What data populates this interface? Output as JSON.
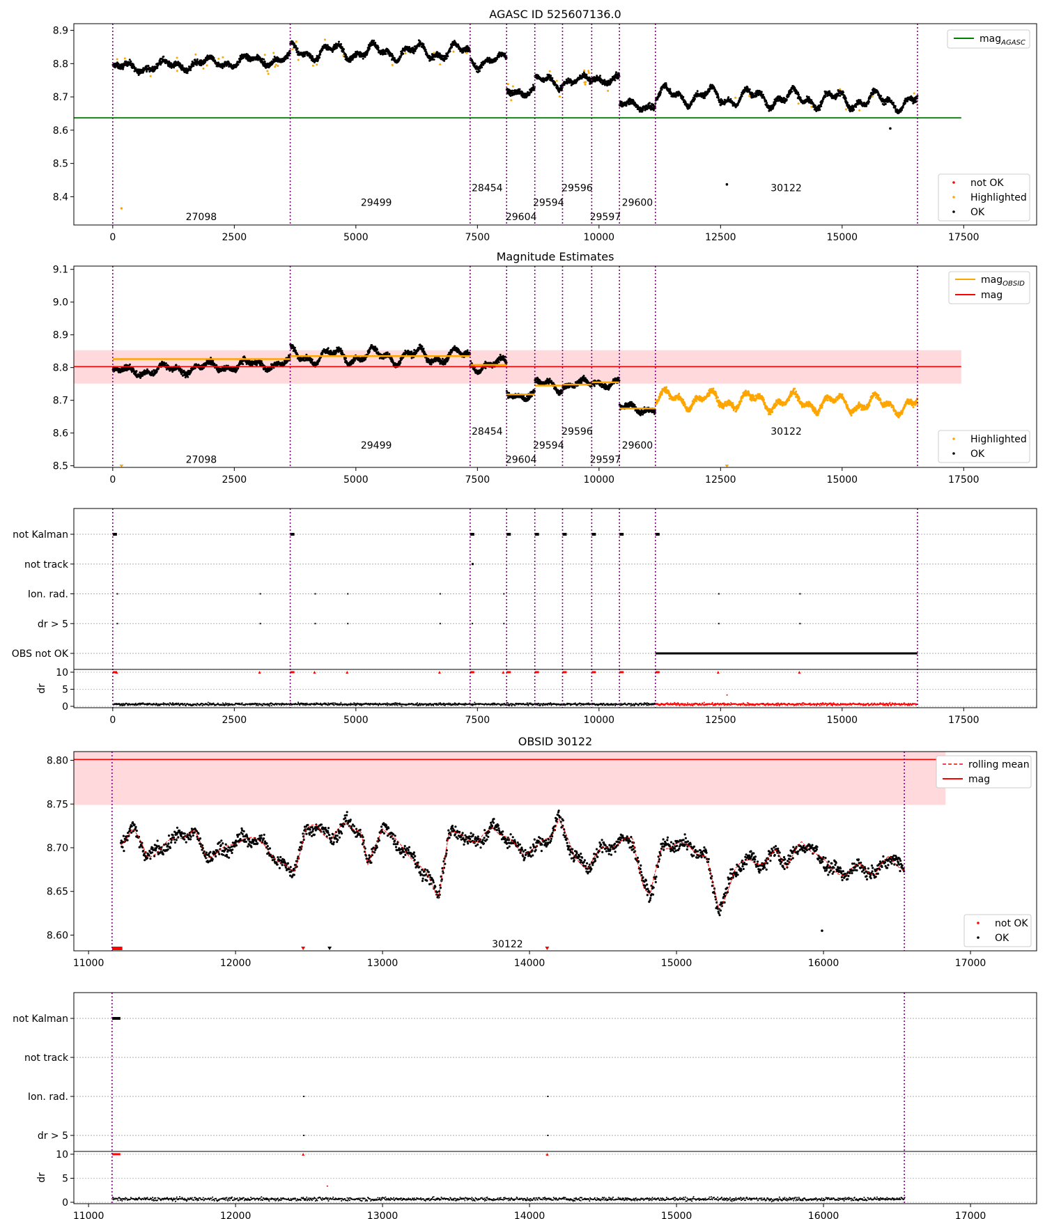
{
  "chart_data": [
    {
      "id": "agasc",
      "type": "scatter",
      "title": "AGASC ID 525607136.0",
      "xlim": [
        -800,
        19000
      ],
      "ylim": [
        8.315,
        8.92
      ],
      "xticks": [
        0,
        2500,
        5000,
        7500,
        10000,
        12500,
        15000,
        17500
      ],
      "xtick_labels": [
        "0",
        "2500",
        "5000",
        "7500",
        "10000",
        "12500",
        "15000",
        "17500"
      ],
      "yticks": [
        8.4,
        8.5,
        8.6,
        8.7,
        8.8,
        8.9
      ],
      "ytick_labels": [
        "8.4",
        "8.5",
        "8.6",
        "8.7",
        "8.8",
        "8.9"
      ],
      "mag_agasc": 8.637,
      "legend_top": [
        "mag_AGASC"
      ],
      "legend_bottom": [
        "not OK",
        "Highlighted",
        "OK"
      ],
      "obs_boundaries": [
        0,
        3650,
        7350,
        8100,
        8680,
        9250,
        9850,
        10420,
        11160,
        16550
      ],
      "obsid_labels": [
        {
          "text": "27098",
          "x": 1820,
          "y": 8.34
        },
        {
          "text": "29499",
          "x": 5420,
          "y": 8.383
        },
        {
          "text": "28454",
          "x": 7700,
          "y": 8.427
        },
        {
          "text": "29604",
          "x": 8400,
          "y": 8.34
        },
        {
          "text": "29594",
          "x": 8960,
          "y": 8.383
        },
        {
          "text": "29596",
          "x": 9550,
          "y": 8.427
        },
        {
          "text": "29597",
          "x": 10130,
          "y": 8.34
        },
        {
          "text": "29600",
          "x": 10790,
          "y": 8.383
        },
        {
          "text": "30122",
          "x": 13850,
          "y": 8.427
        }
      ],
      "segments": [
        {
          "x0": 0,
          "x1": 3650,
          "level": 8.8,
          "rise": 0.03,
          "amp": 0.012
        },
        {
          "x0": 3650,
          "x1": 7350,
          "level": 8.835,
          "rise": 0.0,
          "amp": 0.018
        },
        {
          "x0": 7350,
          "x1": 8100,
          "level": 8.808,
          "rise": 0.0,
          "amp": 0.015
        },
        {
          "x0": 8100,
          "x1": 8680,
          "level": 8.718,
          "rise": 0.0,
          "amp": 0.01
        },
        {
          "x0": 8680,
          "x1": 9250,
          "level": 8.745,
          "rise": 0.0,
          "amp": 0.015
        },
        {
          "x0": 9250,
          "x1": 9850,
          "level": 8.748,
          "rise": 0.0,
          "amp": 0.01
        },
        {
          "x0": 9850,
          "x1": 10420,
          "level": 8.755,
          "rise": 0.0,
          "amp": 0.01
        },
        {
          "x0": 10420,
          "x1": 11160,
          "level": 8.675,
          "rise": 0.0,
          "amp": 0.01
        },
        {
          "x0": 11160,
          "x1": 16550,
          "level": 8.695,
          "rise": -0.02,
          "amp": 0.02
        }
      ],
      "outliers": [
        {
          "x": 180,
          "y": 8.365,
          "status": "Highlighted"
        },
        {
          "x": 12630,
          "y": 8.437,
          "status": "OK"
        },
        {
          "x": 15990,
          "y": 8.605,
          "status": "OK"
        }
      ]
    },
    {
      "id": "mag-estimates",
      "type": "scatter",
      "title": "Magnitude Estimates",
      "xlim": [
        -800,
        19000
      ],
      "ylim": [
        8.495,
        9.11
      ],
      "xticks": [
        0,
        2500,
        5000,
        7500,
        10000,
        12500,
        15000,
        17500
      ],
      "xtick_labels": [
        "0",
        "2500",
        "5000",
        "7500",
        "10000",
        "12500",
        "15000",
        "17500"
      ],
      "yticks": [
        8.5,
        8.6,
        8.7,
        8.8,
        8.9,
        9.0,
        9.1
      ],
      "ytick_labels": [
        "8.5",
        "8.6",
        "8.7",
        "8.8",
        "8.9",
        "9.0",
        "9.1"
      ],
      "mag": 8.803,
      "mag_band": [
        8.751,
        8.853
      ],
      "legend_top": [
        "mag_OBSID",
        "mag"
      ],
      "legend_bottom": [
        "Highlighted",
        "OK"
      ],
      "obsid_mags": [
        8.826,
        8.835,
        8.808,
        8.718,
        8.745,
        8.748,
        8.755,
        8.675
      ],
      "obsid_labels": [
        {
          "text": "27098",
          "x": 1820,
          "y": 8.52
        },
        {
          "text": "29499",
          "x": 5420,
          "y": 8.563
        },
        {
          "text": "28454",
          "x": 7700,
          "y": 8.606
        },
        {
          "text": "29604",
          "x": 8400,
          "y": 8.52
        },
        {
          "text": "29594",
          "x": 8960,
          "y": 8.563
        },
        {
          "text": "29596",
          "x": 9550,
          "y": 8.606
        },
        {
          "text": "29597",
          "x": 10130,
          "y": 8.52
        },
        {
          "text": "29600",
          "x": 10790,
          "y": 8.563
        },
        {
          "text": "30122",
          "x": 13850,
          "y": 8.606
        }
      ]
    },
    {
      "id": "flags-all",
      "type": "scatter",
      "xlim": [
        -800,
        19000
      ],
      "categories": [
        "not Kalman",
        "not track",
        "Ion. rad.",
        "dr > 5",
        "OBS not OK"
      ],
      "dr_label": "dr",
      "dr_ticks": [
        "0",
        "5",
        "10"
      ],
      "xticks": [
        0,
        2500,
        5000,
        7500,
        10000,
        12500,
        15000,
        17500
      ],
      "xtick_labels": [
        "0",
        "2500",
        "5000",
        "7500",
        "10000",
        "12500",
        "15000",
        "17500"
      ],
      "ion_rad_times": [
        80,
        3020,
        4150,
        4820,
        6720,
        8030,
        12450,
        14120
      ],
      "dr5_times": [
        80,
        3020,
        4150,
        4820,
        6720,
        7380,
        8030,
        12450,
        14120
      ],
      "not_track_times": [
        7380
      ],
      "obs_not_ok_range": [
        11160,
        16550
      ]
    },
    {
      "id": "obsid-30122",
      "type": "scatter",
      "title": "OBSID 30122",
      "xlim": [
        10900,
        17450
      ],
      "ylim": [
        8.582,
        8.81
      ],
      "xticks": [
        11000,
        12000,
        13000,
        14000,
        15000,
        16000,
        17000
      ],
      "xtick_labels": [
        "11000",
        "12000",
        "13000",
        "14000",
        "15000",
        "16000",
        "17000"
      ],
      "yticks": [
        8.6,
        8.65,
        8.7,
        8.75,
        8.8
      ],
      "ytick_labels": [
        "8.60",
        "8.65",
        "8.70",
        "8.75",
        "8.80"
      ],
      "mag": 8.801,
      "mag_band": [
        8.749,
        8.853
      ],
      "legend_top": [
        "rolling mean",
        "mag"
      ],
      "legend_bottom": [
        "not OK",
        "OK"
      ],
      "obsid_label": {
        "text": "30122",
        "x": 13850,
        "y": 8.59
      },
      "curve": [
        [
          11220,
          8.705
        ],
        [
          11300,
          8.722
        ],
        [
          11400,
          8.69
        ],
        [
          11500,
          8.7
        ],
        [
          11600,
          8.712
        ],
        [
          11720,
          8.718
        ],
        [
          11800,
          8.69
        ],
        [
          11950,
          8.7
        ],
        [
          12050,
          8.712
        ],
        [
          12200,
          8.705
        ],
        [
          12300,
          8.68
        ],
        [
          12400,
          8.675
        ],
        [
          12480,
          8.72
        ],
        [
          12550,
          8.725
        ],
        [
          12650,
          8.71
        ],
        [
          12750,
          8.728
        ],
        [
          12850,
          8.72
        ],
        [
          12900,
          8.678
        ],
        [
          13000,
          8.725
        ],
        [
          13100,
          8.705
        ],
        [
          13200,
          8.69
        ],
        [
          13300,
          8.668
        ],
        [
          13380,
          8.645
        ],
        [
          13450,
          8.715
        ],
        [
          13550,
          8.715
        ],
        [
          13650,
          8.705
        ],
        [
          13750,
          8.725
        ],
        [
          13850,
          8.71
        ],
        [
          13950,
          8.695
        ],
        [
          14050,
          8.7
        ],
        [
          14150,
          8.715
        ],
        [
          14200,
          8.735
        ],
        [
          14300,
          8.69
        ],
        [
          14400,
          8.678
        ],
        [
          14500,
          8.7
        ],
        [
          14600,
          8.705
        ],
        [
          14700,
          8.71
        ],
        [
          14780,
          8.655
        ],
        [
          14820,
          8.645
        ],
        [
          14900,
          8.7
        ],
        [
          15000,
          8.705
        ],
        [
          15100,
          8.7
        ],
        [
          15200,
          8.69
        ],
        [
          15290,
          8.628
        ],
        [
          15400,
          8.675
        ],
        [
          15500,
          8.688
        ],
        [
          15600,
          8.68
        ],
        [
          15680,
          8.698
        ],
        [
          15750,
          8.68
        ],
        [
          15850,
          8.705
        ],
        [
          15950,
          8.695
        ],
        [
          16050,
          8.675
        ],
        [
          16150,
          8.67
        ],
        [
          16250,
          8.68
        ],
        [
          16350,
          8.67
        ],
        [
          16450,
          8.69
        ],
        [
          16550,
          8.675
        ]
      ],
      "outliers": [
        {
          "x": 15990,
          "y": 8.605,
          "status": "OK"
        }
      ],
      "bottom_markers": [
        {
          "x": 12460,
          "status": "not OK"
        },
        {
          "x": 12640,
          "status": "OK"
        },
        {
          "x": 14120,
          "status": "not OK"
        }
      ]
    },
    {
      "id": "flags-30122",
      "type": "scatter",
      "xlim": [
        10900,
        17450
      ],
      "categories": [
        "not Kalman",
        "not track",
        "Ion. rad.",
        "dr > 5"
      ],
      "dr_label": "dr",
      "dr_ticks": [
        "0",
        "5",
        "10"
      ],
      "xticks": [
        11000,
        12000,
        13000,
        14000,
        15000,
        16000,
        17000
      ],
      "xtick_labels": [
        "11000",
        "12000",
        "13000",
        "14000",
        "15000",
        "16000",
        "17000"
      ],
      "ion_rad_times": [
        12460,
        14120
      ],
      "dr5_times": [
        12460,
        14120
      ],
      "boundaries": [
        11160,
        16550
      ]
    }
  ],
  "legend_text": {
    "mag_agasc_base": "mag",
    "mag_agasc_sub": "AGASC",
    "mag_obsid_base": "mag",
    "mag_obsid_sub": "OBSID",
    "mag": "mag",
    "rolling_mean": "rolling mean",
    "not_ok": "not OK",
    "highlighted": "Highlighted",
    "ok": "OK"
  },
  "colors": {
    "ok": "#000000",
    "not_ok": "#ff0000",
    "highlighted": "#ffa500",
    "mag_agasc": "#008000",
    "mag": "#ff0000",
    "mag_band": "#ffd9dc",
    "obs_boundary": "#800080",
    "grid": "#b0b0b0"
  }
}
